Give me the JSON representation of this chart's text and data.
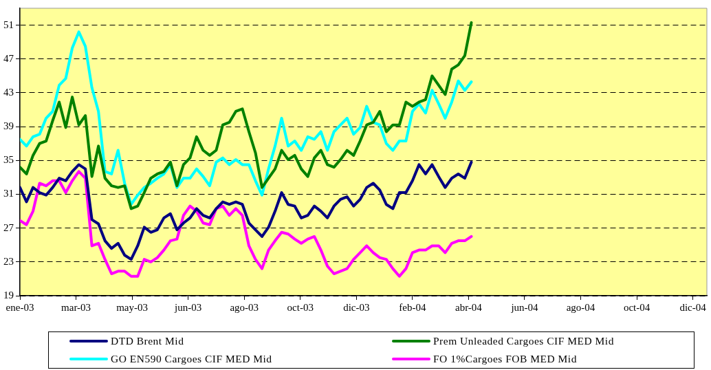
{
  "chart_data": {
    "type": "line",
    "x": [
      "2003-01-01",
      "2003-01-08",
      "2003-01-15",
      "2003-01-22",
      "2003-01-29",
      "2003-02-05",
      "2003-02-12",
      "2003-02-19",
      "2003-02-26",
      "2003-03-05",
      "2003-03-12",
      "2003-03-19",
      "2003-03-26",
      "2003-04-02",
      "2003-04-09",
      "2003-04-16",
      "2003-04-23",
      "2003-04-30",
      "2003-05-07",
      "2003-05-14",
      "2003-05-21",
      "2003-05-28",
      "2003-06-04",
      "2003-06-11",
      "2003-06-18",
      "2003-06-25",
      "2003-07-02",
      "2003-07-09",
      "2003-07-16",
      "2003-07-23",
      "2003-07-30",
      "2003-08-06",
      "2003-08-13",
      "2003-08-20",
      "2003-08-27",
      "2003-09-03",
      "2003-09-10",
      "2003-09-17",
      "2003-09-24",
      "2003-10-01",
      "2003-10-08",
      "2003-10-15",
      "2003-10-22",
      "2003-10-29",
      "2003-11-05",
      "2003-11-12",
      "2003-11-19",
      "2003-11-26",
      "2003-12-03",
      "2003-12-10",
      "2003-12-17",
      "2003-12-24",
      "2003-12-31",
      "2004-01-07",
      "2004-01-14",
      "2004-01-21",
      "2004-01-28",
      "2004-02-04",
      "2004-02-11",
      "2004-02-18",
      "2004-02-25",
      "2004-03-03",
      "2004-03-10",
      "2004-03-17",
      "2004-03-24",
      "2004-03-31",
      "2004-04-07",
      "2004-04-14",
      "2004-04-21",
      "2004-04-28"
    ],
    "series": [
      {
        "name": "DTD Brent Mid",
        "color": "#000080",
        "values": [
          31.8,
          30.1,
          31.8,
          31.2,
          30.9,
          31.8,
          32.9,
          32.6,
          33.7,
          34.5,
          34.0,
          28.0,
          27.5,
          25.5,
          24.6,
          25.2,
          23.8,
          23.3,
          24.9,
          27.1,
          26.5,
          26.8,
          28.2,
          28.7,
          26.8,
          27.6,
          28.2,
          29.3,
          28.5,
          28.2,
          29.3,
          30.1,
          29.8,
          30.1,
          29.8,
          27.6,
          26.8,
          26.0,
          27.1,
          29.0,
          31.2,
          29.8,
          29.6,
          28.2,
          28.5,
          29.6,
          29.0,
          28.2,
          29.6,
          30.4,
          30.7,
          29.6,
          30.4,
          31.8,
          32.3,
          31.5,
          29.8,
          29.3,
          31.2,
          31.2,
          32.6,
          34.5,
          33.4,
          34.5,
          33.1,
          31.8,
          32.9,
          33.4,
          32.9,
          34.8
        ]
      },
      {
        "name": "Prem Unleaded Cargoes CIF MED Mid",
        "color": "#008000",
        "values": [
          34.2,
          33.4,
          35.6,
          37.0,
          37.3,
          39.7,
          41.9,
          38.9,
          42.5,
          39.2,
          40.3,
          33.1,
          36.7,
          32.9,
          32.0,
          31.8,
          32.0,
          29.3,
          29.6,
          31.2,
          32.9,
          33.4,
          33.7,
          34.8,
          32.0,
          34.5,
          35.3,
          37.8,
          36.2,
          35.6,
          36.2,
          39.2,
          39.5,
          40.8,
          41.1,
          38.4,
          35.9,
          31.8,
          32.9,
          34.0,
          36.2,
          35.1,
          35.6,
          34.0,
          33.1,
          35.3,
          36.2,
          34.5,
          34.2,
          35.1,
          36.2,
          35.6,
          37.3,
          39.2,
          39.5,
          40.8,
          38.4,
          39.2,
          39.2,
          41.9,
          41.4,
          41.9,
          42.2,
          45.0,
          43.9,
          42.8,
          45.8,
          46.3,
          47.4,
          51.3
        ]
      },
      {
        "name": "GO EN590 Cargoes CIF MED Mid",
        "color": "#00ffff",
        "values": [
          37.5,
          36.7,
          37.8,
          38.1,
          40.0,
          40.8,
          43.9,
          44.7,
          48.3,
          50.2,
          48.5,
          43.6,
          40.8,
          33.7,
          33.4,
          36.2,
          32.3,
          29.8,
          30.9,
          31.8,
          32.3,
          32.9,
          33.4,
          34.5,
          31.8,
          32.9,
          32.9,
          34.0,
          33.1,
          32.0,
          34.8,
          35.3,
          34.5,
          35.1,
          34.5,
          34.5,
          32.6,
          30.9,
          34.0,
          36.7,
          40.0,
          36.7,
          37.3,
          36.2,
          37.8,
          37.5,
          38.4,
          36.2,
          38.4,
          39.2,
          40.0,
          38.1,
          38.9,
          41.4,
          39.5,
          39.2,
          37.0,
          36.2,
          37.3,
          37.3,
          40.8,
          41.7,
          40.6,
          43.3,
          41.7,
          40.0,
          41.9,
          44.4,
          43.3,
          44.3
        ]
      },
      {
        "name": "FO 1%Cargoes FOB MED Mid",
        "color": "#ff00ff",
        "values": [
          27.9,
          27.4,
          29.0,
          32.3,
          32.0,
          32.6,
          32.6,
          31.2,
          32.6,
          33.7,
          32.9,
          24.9,
          25.2,
          23.3,
          21.6,
          21.9,
          21.9,
          21.3,
          21.3,
          23.3,
          23.0,
          23.5,
          24.4,
          25.5,
          25.7,
          28.5,
          29.6,
          29.0,
          27.6,
          27.4,
          29.3,
          29.6,
          28.5,
          29.3,
          28.5,
          24.9,
          23.3,
          22.2,
          24.4,
          25.5,
          26.5,
          26.3,
          25.7,
          25.2,
          25.7,
          26.0,
          24.4,
          22.5,
          21.6,
          21.9,
          22.2,
          23.3,
          24.1,
          24.9,
          24.1,
          23.5,
          23.3,
          22.2,
          21.3,
          22.2,
          24.1,
          24.4,
          24.4,
          24.9,
          24.9,
          24.1,
          25.2,
          25.5,
          25.5,
          26.0
        ]
      }
    ],
    "xlim": [
      "2003-01-01",
      "2005-01-05"
    ],
    "xticks": [
      {
        "value": "2003-01-01",
        "label": "ene-03"
      },
      {
        "value": "2003-03-02",
        "label": "mar-03"
      },
      {
        "value": "2003-05-01",
        "label": "may-03"
      },
      {
        "value": "2003-06-30",
        "label": "jun-03"
      },
      {
        "value": "2003-08-29",
        "label": "ago-03"
      },
      {
        "value": "2003-10-28",
        "label": "oct-03"
      },
      {
        "value": "2003-12-27",
        "label": "dic-03"
      },
      {
        "value": "2004-02-25",
        "label": "feb-04"
      },
      {
        "value": "2004-04-25",
        "label": "abr-04"
      },
      {
        "value": "2004-06-24",
        "label": "jun-04"
      },
      {
        "value": "2004-08-23",
        "label": "ago-04"
      },
      {
        "value": "2004-10-22",
        "label": "oct-04"
      },
      {
        "value": "2004-12-21",
        "label": "dic-04"
      }
    ],
    "ylim": [
      19,
      53
    ],
    "yticks": [
      19,
      23,
      27,
      31,
      35,
      39,
      43,
      47,
      51
    ],
    "grid": "y",
    "legend": "bottom",
    "marker": "none",
    "line_style": "solid"
  }
}
